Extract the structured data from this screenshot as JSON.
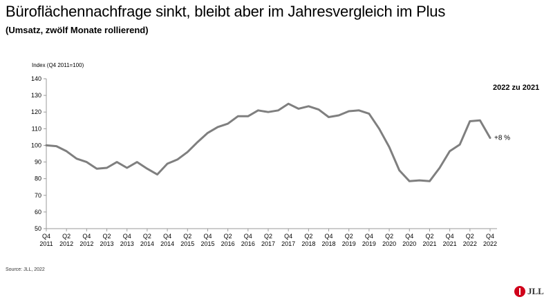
{
  "chart_data": {
    "type": "line",
    "title": "Büroflächennachfrage sinkt, bleibt aber im Jahresvergleich im Plus",
    "subtitle": "(Umsatz, zwölf Monate rollierend)",
    "ylabel": "Index (Q4 2011=100)",
    "ylim": [
      50,
      140
    ],
    "yticks": [
      50,
      60,
      70,
      80,
      90,
      100,
      110,
      120,
      130,
      140
    ],
    "grid": false,
    "series": [
      {
        "color": "#7f7f7f",
        "values": [
          100,
          99.5,
          96.5,
          92,
          90,
          86,
          86.5,
          90,
          86.5,
          90,
          86,
          82.5,
          89,
          91.5,
          96,
          102,
          107.5,
          111,
          113,
          117.5,
          117.5,
          121,
          120,
          121,
          125,
          122,
          123.5,
          121.5,
          117,
          118,
          120.5,
          121,
          119,
          110,
          99,
          85,
          78.5,
          79,
          78.5,
          86.5,
          96.5,
          100.5,
          114.5,
          115,
          104.5
        ]
      }
    ],
    "x_labels": [
      {
        "q": "Q4",
        "y": "2011"
      },
      {
        "q": "Q2",
        "y": "2012"
      },
      {
        "q": "Q4",
        "y": "2012"
      },
      {
        "q": "Q2",
        "y": "2013"
      },
      {
        "q": "Q4",
        "y": "2013"
      },
      {
        "q": "Q2",
        "y": "2014"
      },
      {
        "q": "Q4",
        "y": "2014"
      },
      {
        "q": "Q2",
        "y": "2015"
      },
      {
        "q": "Q4",
        "y": "2015"
      },
      {
        "q": "Q2",
        "y": "2016"
      },
      {
        "q": "Q4",
        "y": "2016"
      },
      {
        "q": "Q2",
        "y": "2017"
      },
      {
        "q": "Q4",
        "y": "2017"
      },
      {
        "q": "Q2",
        "y": "2018"
      },
      {
        "q": "Q4",
        "y": "2018"
      },
      {
        "q": "Q2",
        "y": "2019"
      },
      {
        "q": "Q4",
        "y": "2019"
      },
      {
        "q": "Q2",
        "y": "2020"
      },
      {
        "q": "Q4",
        "y": "2020"
      },
      {
        "q": "Q2",
        "y": "2021"
      },
      {
        "q": "Q4",
        "y": "2021"
      },
      {
        "q": "Q2",
        "y": "2022"
      },
      {
        "q": "Q4",
        "y": "2022"
      }
    ],
    "annotations": {
      "header": "2022 zu 2021",
      "change_label": "+8 %"
    },
    "source": "Source: JLL, 2022"
  },
  "brand": {
    "logo_text": "JLL",
    "logo_color": "#d0021b"
  }
}
